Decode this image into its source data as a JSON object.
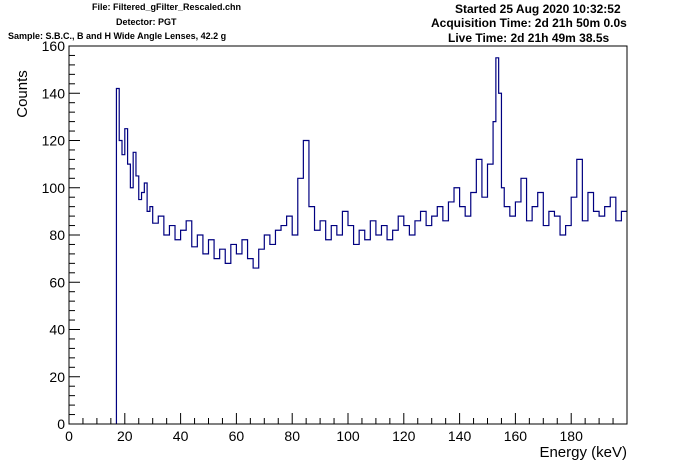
{
  "header": {
    "file": "File: Filtered_gFilter_Rescaled.chn",
    "detector": "Detector: PGT",
    "sample": "Sample: S.B.C., B and H Wide Angle Lenses, 42.2 g",
    "started": "Started 25 Aug 2020 10:32:52",
    "acquisition": "Acquisition Time: 2d 21h 50m 0.0s",
    "live": "Live Time: 2d 21h 49m 38.5s"
  },
  "colors": {
    "series": "#000080",
    "axis": "#000000"
  },
  "chart_data": {
    "type": "line",
    "style": "step histogram",
    "title": "",
    "xlabel": "Energy (keV)",
    "ylabel": "Counts",
    "xlim": [
      0,
      200
    ],
    "ylim": [
      0,
      160
    ],
    "x_ticks": [
      0,
      20,
      40,
      60,
      80,
      100,
      120,
      140,
      160,
      180
    ],
    "y_ticks": [
      0,
      20,
      40,
      60,
      80,
      100,
      120,
      140,
      160
    ],
    "x_minor_step": 5,
    "y_minor_step": 4,
    "grid": false,
    "legend": "none",
    "series": [
      {
        "x": [
          17,
          18,
          19,
          20,
          21,
          22,
          23,
          24,
          25,
          26,
          27,
          28,
          29,
          30,
          32,
          34,
          36,
          38,
          40,
          42,
          44,
          46,
          48,
          50,
          52,
          54,
          56,
          58,
          60,
          62,
          64,
          66,
          68,
          70,
          72,
          74,
          76,
          78,
          80,
          82,
          84,
          86,
          88,
          90,
          92,
          94,
          96,
          98,
          100,
          102,
          104,
          106,
          108,
          110,
          112,
          114,
          116,
          118,
          120,
          122,
          124,
          126,
          128,
          130,
          132,
          134,
          136,
          138,
          140,
          142,
          144,
          146,
          148,
          150,
          152,
          153,
          154,
          155,
          156,
          158,
          160,
          162,
          164,
          166,
          168,
          170,
          172,
          174,
          176,
          178,
          180,
          182,
          184,
          186,
          188,
          190,
          192,
          194,
          196,
          198
        ],
        "values": [
          142,
          120,
          114,
          125,
          110,
          100,
          115,
          105,
          95,
          98,
          102,
          90,
          92,
          85,
          88,
          80,
          84,
          78,
          82,
          86,
          75,
          80,
          72,
          78,
          70,
          74,
          68,
          76,
          72,
          78,
          70,
          66,
          74,
          80,
          76,
          82,
          84,
          88,
          80,
          104,
          120,
          92,
          82,
          86,
          78,
          84,
          80,
          90,
          84,
          76,
          82,
          78,
          86,
          80,
          84,
          78,
          82,
          88,
          84,
          80,
          86,
          90,
          84,
          88,
          92,
          86,
          94,
          100,
          92,
          88,
          98,
          112,
          96,
          110,
          128,
          155,
          140,
          100,
          92,
          88,
          94,
          104,
          86,
          92,
          98,
          84,
          90,
          88,
          80,
          84,
          96,
          112,
          86,
          98,
          90,
          88,
          92,
          96,
          86,
          90
        ]
      }
    ]
  }
}
